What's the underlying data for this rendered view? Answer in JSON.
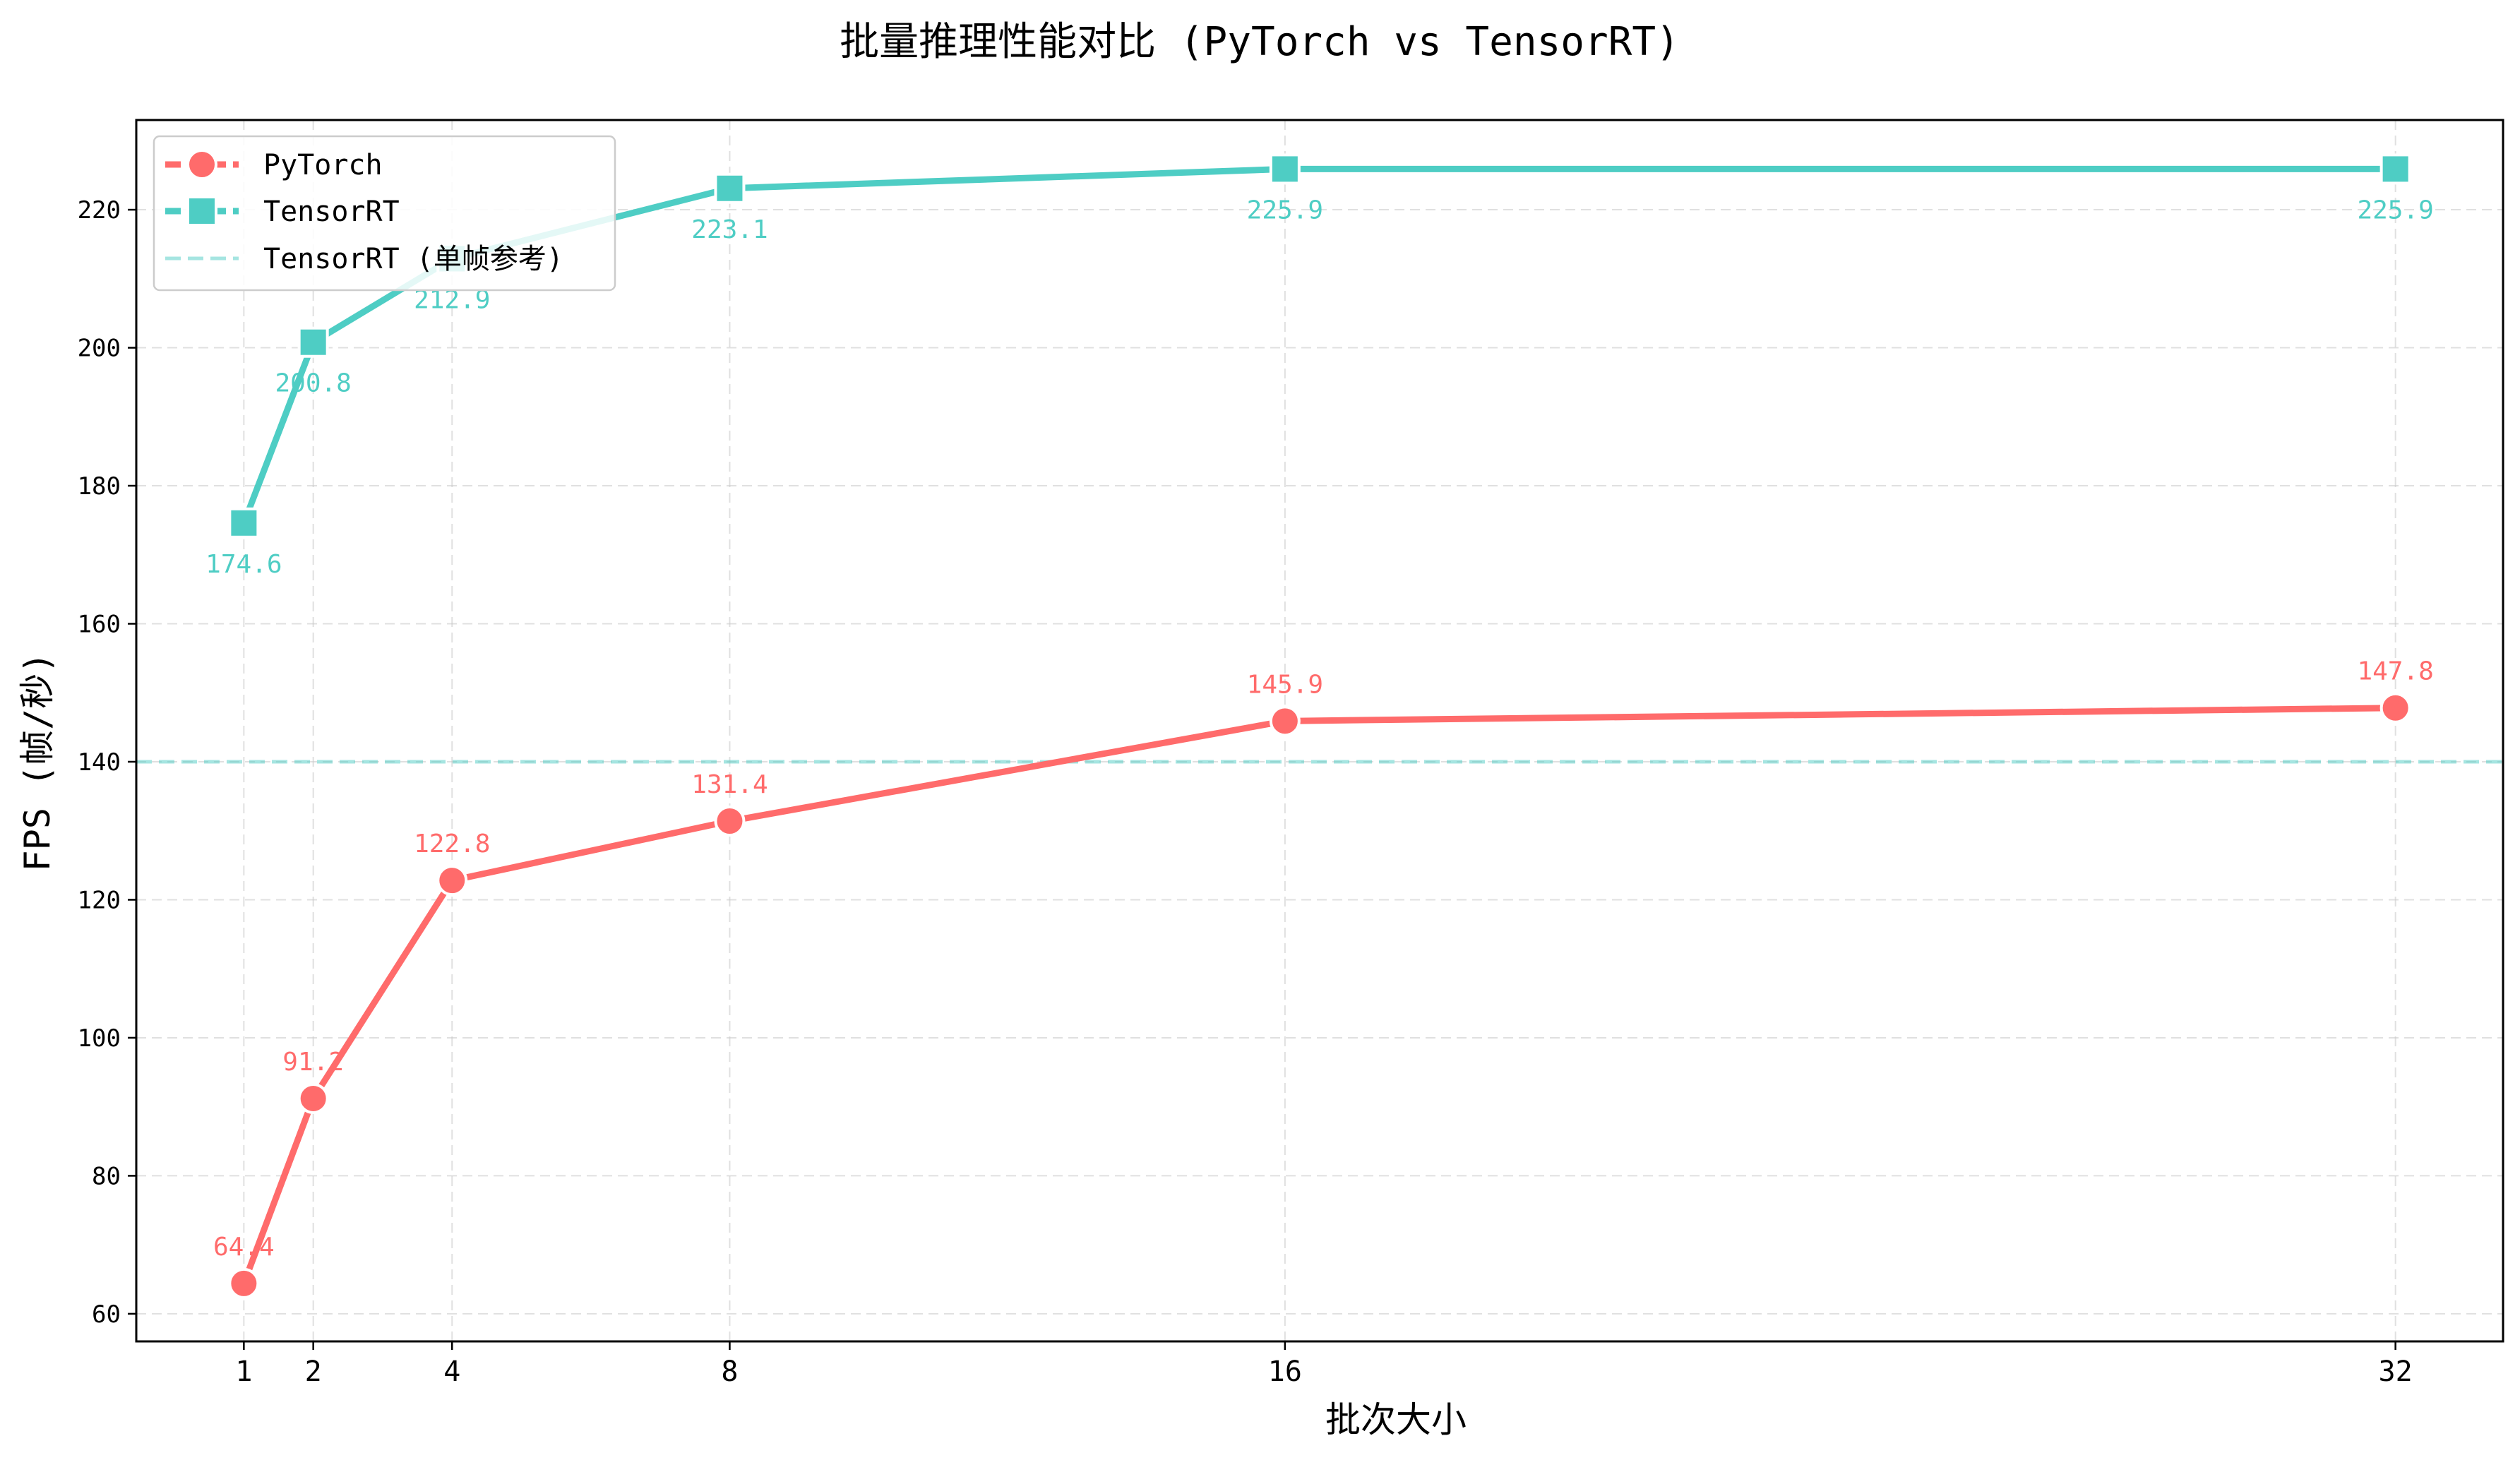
{
  "chart_data": {
    "type": "line",
    "title": "批量推理性能对比 (PyTorch vs TensorRT)",
    "xlabel": "批次大小",
    "ylabel": "FPS (帧/秒)",
    "x": [
      1,
      2,
      4,
      8,
      16,
      32
    ],
    "x_tick_labels": [
      "1",
      "2",
      "4",
      "8",
      "16",
      "32"
    ],
    "xlim": [
      -0.55,
      33.55
    ],
    "ylim": [
      56,
      233
    ],
    "y_ticks": [
      60,
      80,
      100,
      120,
      140,
      160,
      180,
      200,
      220
    ],
    "grid": true,
    "grid_style": "dashed",
    "legend_position": "top-left",
    "series": [
      {
        "name": "PyTorch",
        "color": "#FF6B6B",
        "marker": "circle",
        "values": [
          64.4,
          91.2,
          122.8,
          131.4,
          145.9,
          147.8
        ],
        "value_labels": [
          "64.4",
          "91.2",
          "122.8",
          "131.4",
          "145.9",
          "147.8"
        ],
        "label_position": "above"
      },
      {
        "name": "TensorRT",
        "color": "#4ECDC4",
        "marker": "square",
        "values": [
          174.6,
          200.8,
          212.9,
          223.1,
          225.9,
          225.9
        ],
        "value_labels": [
          "174.6",
          "200.8",
          "212.9",
          "223.1",
          "225.9",
          "225.9"
        ],
        "label_position": "below"
      }
    ],
    "reference_lines": [
      {
        "name": "TensorRT (单帧参考)",
        "y": 140,
        "color": "#4ECDC4",
        "style": "dashed",
        "alpha": 0.5
      }
    ]
  }
}
